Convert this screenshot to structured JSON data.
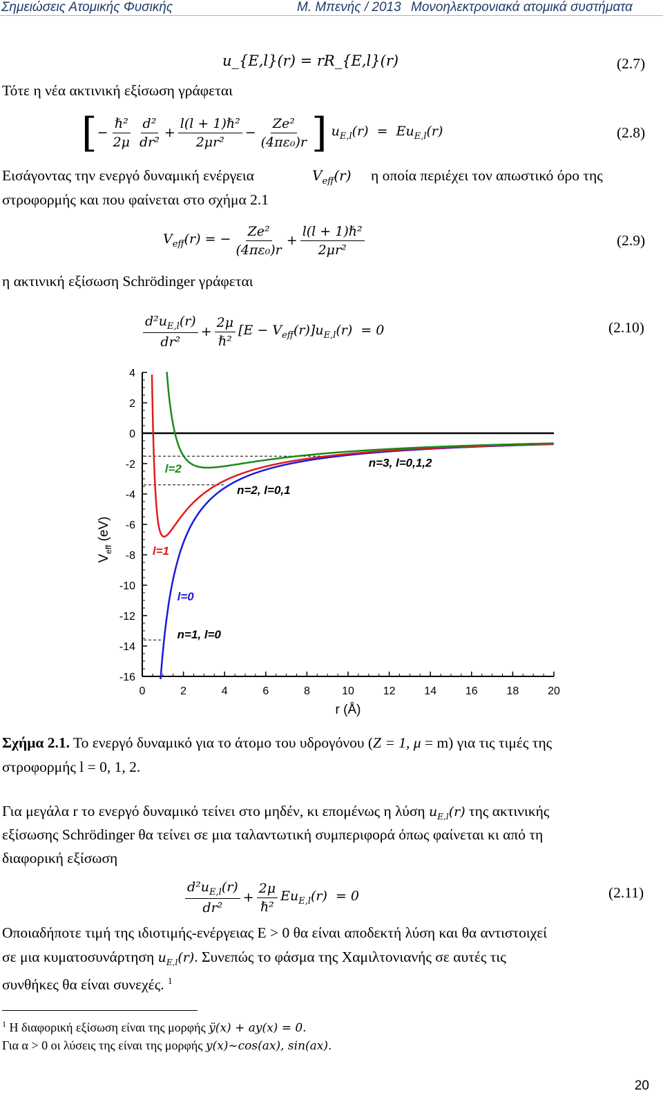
{
  "header": {
    "left": "Σημειώσεις Ατομικής Φυσικής",
    "center": "Μ. Μπενής / 2013",
    "right": "Μονοηλεκτρονιακά ατομικά συστήματα"
  },
  "equations": {
    "eq27": "u_{E,l}(r) = rR_{E,l}(r)",
    "eq27_no": "(2.7)",
    "eq28_no": "(2.8)",
    "eq29_no": "(2.9)",
    "eq210_no": "(2.10)",
    "eq211_no": "(2.11)"
  },
  "text": {
    "line1": "Τότε η νέα ακτινική εξίσωση γράφεται",
    "line2a": "Εισάγοντας την ενεργό δυναμική ενέργεια",
    "line2b": "η οποία περιέχει τον απωστικό όρο της",
    "line3": "στροφορμής και που φαίνεται στο σχήμα 2.1",
    "line4": "η ακτινική εξίσωση Schrödinger γράφεται",
    "para1a": "Για μεγάλα r το ενεργό δυναμικό τείνει στο μηδέν, κι επομένως η λύση",
    "para1b": "της ακτινικής",
    "para1c": "εξίσωσης Schrödinger θα τείνει σε μια ταλαντωτική συμπεριφορά όπως φαίνεται κι από τη",
    "para1d": "διαφορική εξίσωση",
    "para2a": "Οποιαδήποτε τιμή της ιδιοτιμής-ενέργειας E > 0 θα είναι αποδεκτή λύση και θα αντιστοιχεί",
    "para2b": "σε μια κυματοσυνάρτηση",
    "para2c": ". Συνεπώς το φάσμα της Χαμιλτονιανής σε αυτές τις",
    "para2d": "συνθήκες θα είναι συνεχές.",
    "para2d_sup": "1"
  },
  "caption": {
    "label": "Σχήμα 2.1.",
    "text1": "Το ενεργό δυναμικό για το άτομο του υδρογόνου (",
    "Z": "Z = 1, μ",
    "text2": "= m) για τις τιμές της",
    "text3": "στροφορμής l = 0, 1, 2."
  },
  "footnote": {
    "mark": "1",
    "line1": "Η διαφορική εξίσωση είναι της μορφής",
    "line1_eq": "ÿ(x) + ay(x) = 0.",
    "line2": "Για α > 0 οι λύσεις της είναι της μορφής",
    "line2_eq": "y(x)~cos(ax), sin(ax)."
  },
  "page_number": "20",
  "chart_data": {
    "type": "line",
    "xlabel": "r (Å)",
    "ylabel": "V_eff (eV)",
    "xlim": [
      0,
      20
    ],
    "ylim": [
      -16,
      4
    ],
    "xticks": [
      0,
      2,
      4,
      6,
      8,
      10,
      12,
      14,
      16,
      18,
      20
    ],
    "yticks": [
      4,
      2,
      0,
      -2,
      -4,
      -6,
      -8,
      -10,
      -12,
      -14,
      -16
    ],
    "series": [
      {
        "label": "l=0",
        "color": "#1a1adc",
        "l": 0
      },
      {
        "label": "l=1",
        "color": "#e01b1b",
        "l": 1
      },
      {
        "label": "l=2",
        "color": "#1a8a1a",
        "l": 2
      }
    ],
    "levels": [
      {
        "label": "n=1, l=0",
        "energy": -13.6
      },
      {
        "label": "n=2, l=0,1",
        "energy": -3.4
      },
      {
        "label": "n=3, l=0,1,2",
        "energy": -1.51
      }
    ],
    "annotations": {
      "l0": "l=0",
      "l1": "l=1",
      "l2": "l=2",
      "n1": "n=1, l=0",
      "n2": "n=2, l=0,1",
      "n3": "n=3, l=0,1,2"
    }
  }
}
